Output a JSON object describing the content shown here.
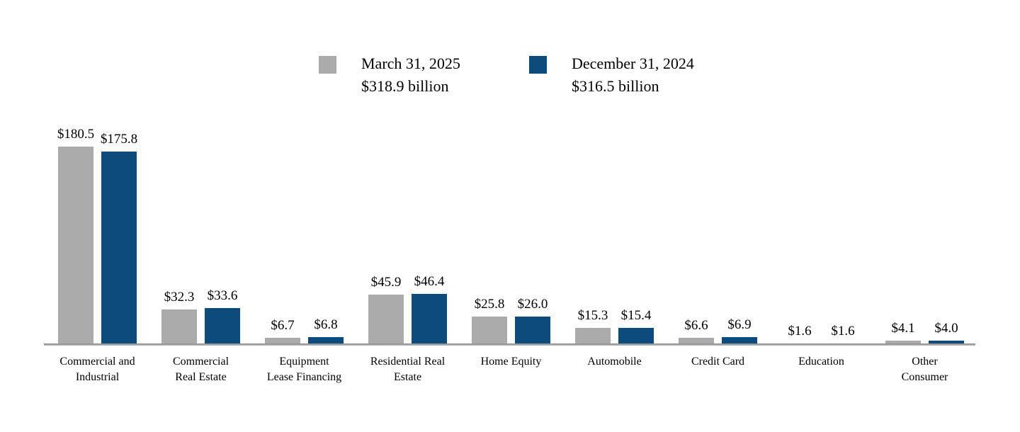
{
  "legend": {
    "items": [
      {
        "label": "March 31, 2025",
        "sublabel": "$318.9 billion",
        "color": "#ababab"
      },
      {
        "label": "December 31, 2024",
        "sublabel": "$316.5 billion",
        "color": "#0e4b7d"
      }
    ]
  },
  "chart_data": {
    "type": "bar",
    "title": "",
    "xlabel": "",
    "ylabel": "",
    "value_prefix": "$",
    "value_decimals": 1,
    "units": "billions of dollars",
    "grid": false,
    "legend_position": "top",
    "ylim": [
      0,
      190
    ],
    "categories": [
      "Commercial and\nIndustrial",
      "Commercial\nReal Estate",
      "Equipment\nLease Financing",
      "Residential Real\nEstate",
      "Home Equity",
      "Automobile",
      "Credit Card",
      "Education",
      "Other\nConsumer"
    ],
    "series": [
      {
        "name": "March 31, 2025",
        "total": "$318.9 billion",
        "color": "#ababab",
        "values": [
          180.5,
          32.3,
          6.7,
          45.9,
          25.8,
          15.3,
          6.6,
          1.6,
          4.1
        ]
      },
      {
        "name": "December 31, 2024",
        "total": "$316.5 billion",
        "color": "#0e4b7d",
        "values": [
          175.8,
          33.6,
          6.8,
          46.4,
          26.0,
          15.4,
          6.9,
          1.6,
          4.0
        ]
      }
    ]
  }
}
